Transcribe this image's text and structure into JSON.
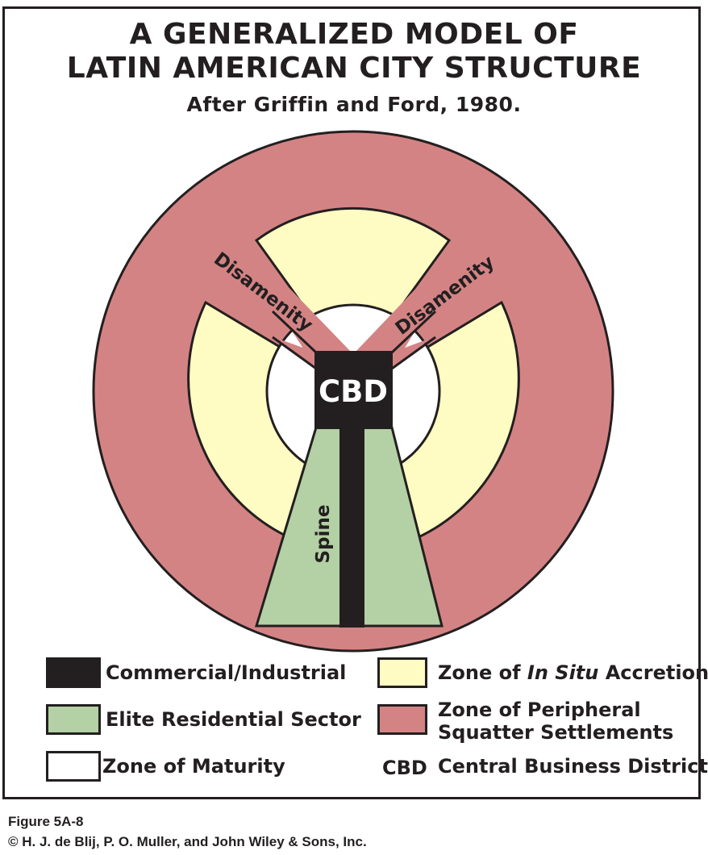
{
  "title_line1": "A GENERALIZED MODEL OF",
  "title_line2": "LATIN AMERICAN CITY STRUCTURE",
  "subtitle": "After Griffin and Ford, 1980.",
  "labels": {
    "cbd": "CBD",
    "disamenity_left": "Disamenity",
    "disamenity_right": "Disamenity",
    "spine": "Spine"
  },
  "colors": {
    "commercial": "#231f20",
    "elite": "#b3d1a4",
    "maturity": "#ffffff",
    "accretion": "#fefcc2",
    "squatter": "#d48384"
  },
  "legend": {
    "commercial": "Commercial/Industrial",
    "elite": "Elite Residential Sector",
    "maturity": "Zone of Maturity",
    "accretion_pre": "Zone of ",
    "accretion_italic": "In Situ",
    "accretion_post": " Accretion",
    "squatter_line1": "Zone of Peripheral",
    "squatter_line2": "Squatter Settlements",
    "cbd_abbr": "CBD",
    "cbd_full": "Central Business District"
  },
  "figure_label": "Figure 5A-8",
  "copyright": "© H. J. de Blij, P. O. Muller, and John Wiley & Sons, Inc."
}
